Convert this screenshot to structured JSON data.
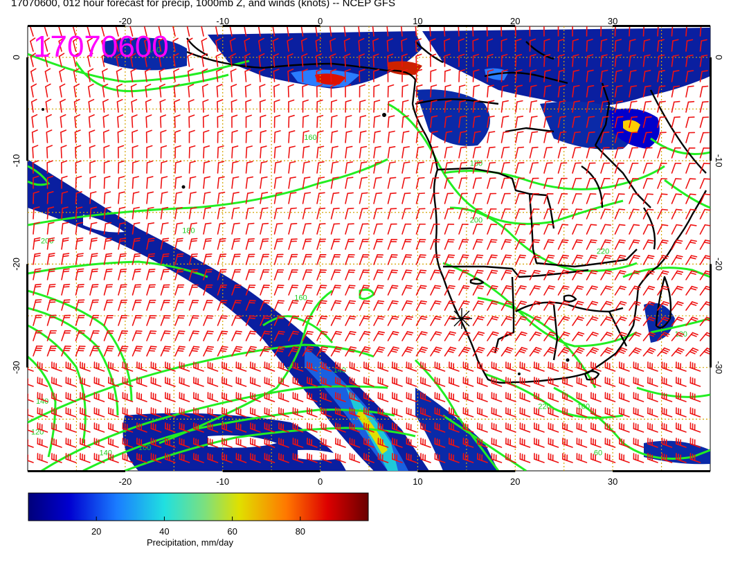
{
  "title": "17070600, 012 hour forecast for precip, 1000mb Z, and winds (knots) -- NCEP GFS",
  "datetime_stamp": "17070600",
  "map": {
    "lon_range": [
      -30,
      40
    ],
    "lat_range": [
      -40,
      3
    ],
    "lon_ticks": [
      -20,
      -10,
      0,
      10,
      20,
      30
    ],
    "lon_tick_labels": [
      "-20",
      "-10",
      "0",
      "10",
      "20",
      "30"
    ],
    "lat_ticks": [
      0,
      -10,
      -20,
      -30
    ],
    "lat_tick_labels": [
      "0",
      "-10",
      "-20",
      "-30"
    ],
    "grid": true,
    "colors": {
      "contour": "#22ee22",
      "wind_barb": "#ee1111",
      "grid": "#d4a400",
      "coastline": "#000000",
      "stamp": "#ff00ff"
    },
    "contour_labels": [
      {
        "text": "140",
        "lon": -17,
        "lat": 0.5
      },
      {
        "text": "160",
        "lon": -1,
        "lat": -8
      },
      {
        "text": "180",
        "lon": -13.5,
        "lat": -17
      },
      {
        "text": "200",
        "lon": -28,
        "lat": -18
      },
      {
        "text": "160",
        "lon": -2,
        "lat": -23.5
      },
      {
        "text": "140",
        "lon": 2,
        "lat": -30.5
      },
      {
        "text": "140",
        "lon": -28.5,
        "lat": -33.5
      },
      {
        "text": "120",
        "lon": -29,
        "lat": -36.5
      },
      {
        "text": "180",
        "lon": 16,
        "lat": -10.5
      },
      {
        "text": "200",
        "lon": 16,
        "lat": -16
      },
      {
        "text": "220",
        "lon": 29,
        "lat": -19
      },
      {
        "text": "220",
        "lon": 23,
        "lat": -34
      },
      {
        "text": "120",
        "lon": 37,
        "lat": -27
      },
      {
        "text": "100",
        "lon": 27,
        "lat": -34
      },
      {
        "text": "60",
        "lon": 28.5,
        "lat": -38.5
      },
      {
        "text": "140",
        "lon": -22,
        "lat": -38.5
      },
      {
        "text": "160",
        "lon": -18,
        "lat": -38
      }
    ]
  },
  "colorbar": {
    "label": "Precipitation, mm/day",
    "range": [
      0,
      100
    ],
    "ticks": [
      20,
      40,
      60,
      80
    ],
    "tick_labels": [
      "20",
      "40",
      "60",
      "80"
    ]
  }
}
